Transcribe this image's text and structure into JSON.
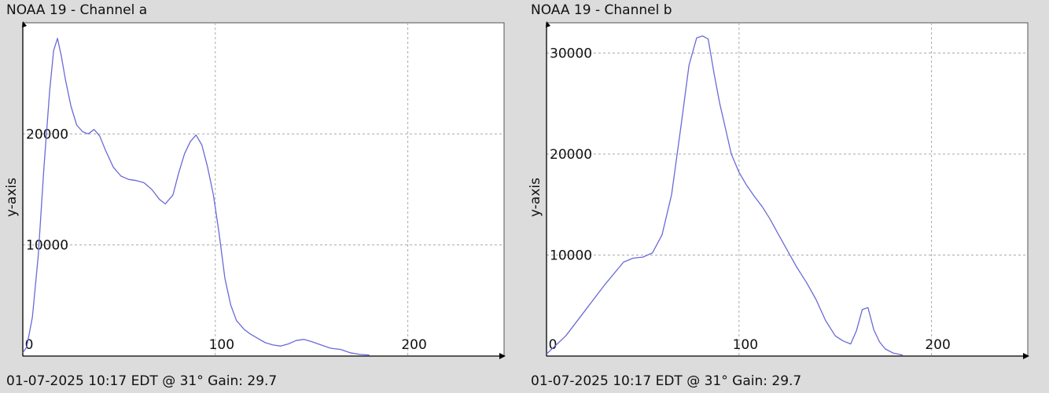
{
  "chart_data": [
    {
      "type": "line",
      "title": "NOAA 19 - Channel a",
      "ylabel": "y-axis",
      "footer": "01-07-2025 10:17 EDT @ 31° Gain: 29.7",
      "xlim": [
        0,
        250
      ],
      "ylim": [
        0,
        30000
      ],
      "x_ticks": [
        0,
        100,
        200
      ],
      "y_ticks": [
        10000,
        20000
      ],
      "grid": true,
      "line_color": "#6a6ad8",
      "series": [
        {
          "x": [
            0,
            2,
            5,
            8,
            11,
            14,
            16,
            18,
            20,
            22,
            25,
            28,
            31,
            34,
            37,
            40,
            43,
            47,
            51,
            55,
            59,
            63,
            67,
            71,
            74,
            78,
            81,
            84,
            87,
            90,
            93,
            96,
            99,
            102,
            105,
            108,
            111,
            115,
            118,
            122,
            126,
            130,
            134,
            138,
            142,
            146,
            150,
            155,
            160,
            165,
            170,
            175,
            180
          ],
          "y": [
            300,
            800,
            3500,
            9000,
            17000,
            24000,
            27500,
            28600,
            27000,
            25000,
            22500,
            20800,
            20200,
            20000,
            20400,
            19800,
            18500,
            17000,
            16200,
            15900,
            15800,
            15600,
            15000,
            14100,
            13700,
            14500,
            16500,
            18200,
            19300,
            19900,
            19000,
            17000,
            14500,
            11000,
            7000,
            4600,
            3200,
            2400,
            2000,
            1600,
            1200,
            1000,
            900,
            1100,
            1400,
            1500,
            1300,
            1000,
            700,
            600,
            300,
            150,
            100
          ]
        }
      ]
    },
    {
      "type": "line",
      "title": "NOAA 19 - Channel b",
      "ylabel": "y-axis",
      "footer": "01-07-2025 10:17 EDT @ 31° Gain: 29.7",
      "xlim": [
        0,
        250
      ],
      "ylim": [
        0,
        33000
      ],
      "x_ticks": [
        0,
        100,
        200
      ],
      "y_ticks": [
        10000,
        20000,
        30000
      ],
      "grid": true,
      "line_color": "#6a6ad8",
      "series": [
        {
          "x": [
            0,
            10,
            20,
            30,
            40,
            45,
            50,
            55,
            60,
            65,
            70,
            74,
            78,
            81,
            84,
            87,
            90,
            93,
            96,
            100,
            104,
            108,
            112,
            116,
            120,
            125,
            130,
            135,
            140,
            145,
            150,
            154,
            158,
            161,
            164,
            167,
            170,
            173,
            176,
            180,
            185
          ],
          "y": [
            200,
            2000,
            4500,
            7000,
            9300,
            9700,
            9800,
            10200,
            12000,
            16000,
            23000,
            28800,
            31500,
            31700,
            31400,
            28000,
            25000,
            22500,
            20000,
            18200,
            16900,
            15800,
            14800,
            13600,
            12200,
            10500,
            8800,
            7300,
            5600,
            3500,
            2000,
            1500,
            1200,
            2500,
            4600,
            4800,
            2600,
            1400,
            700,
            300,
            100
          ]
        }
      ]
    }
  ]
}
